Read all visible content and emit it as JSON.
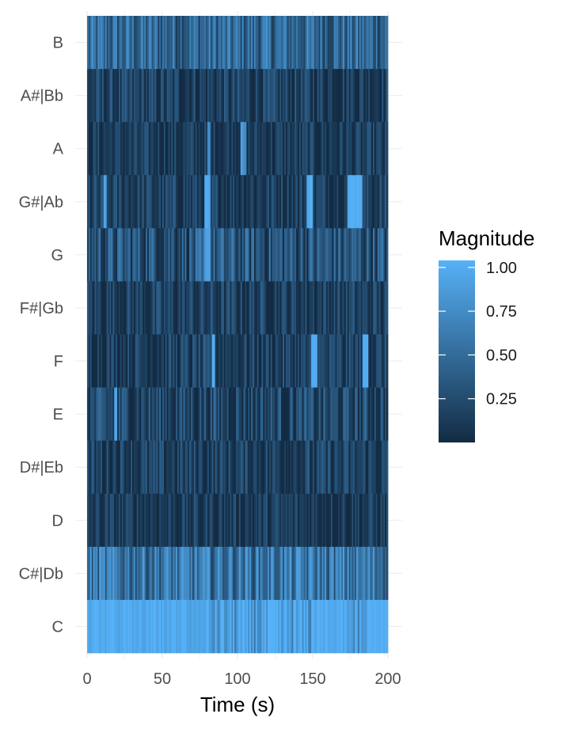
{
  "chart_data": {
    "type": "heatmap",
    "title": "",
    "xlabel": "Time (s)",
    "ylabel": "",
    "xlim": [
      0,
      200
    ],
    "x_ticks": [
      0,
      50,
      100,
      150,
      200
    ],
    "y_categories": [
      "C",
      "C#|Db",
      "D",
      "D#|Eb",
      "E",
      "F",
      "F#|Gb",
      "G",
      "G#|Ab",
      "A",
      "A#|Bb",
      "B"
    ],
    "legend": {
      "title": "Magnitude",
      "placement": "right",
      "ticks": [
        0.25,
        0.5,
        0.75,
        1.0
      ],
      "tick_labels": [
        "0.25",
        "0.50",
        "0.75",
        "1.00"
      ],
      "range": [
        0,
        1
      ]
    },
    "color_low": "#132B43",
    "color_high": "#56B1F7",
    "grid": true,
    "rows": [
      {
        "pitch": "B",
        "base": 0.45,
        "spread": 0.35,
        "peaks": []
      },
      {
        "pitch": "A#|Bb",
        "base": 0.15,
        "spread": 0.25,
        "peaks": []
      },
      {
        "pitch": "A",
        "base": 0.12,
        "spread": 0.22,
        "peaks": [
          [
            80,
            81.5,
            0.8
          ],
          [
            102,
            104,
            0.9
          ],
          [
            104,
            106,
            0.8
          ]
        ]
      },
      {
        "pitch": "G#|Ab",
        "base": 0.15,
        "spread": 0.25,
        "peaks": [
          [
            11,
            13,
            0.95
          ],
          [
            78,
            82,
            1.0
          ],
          [
            146,
            150,
            1.0
          ],
          [
            173,
            183,
            1.0
          ]
        ]
      },
      {
        "pitch": "G",
        "base": 0.3,
        "spread": 0.35,
        "peaks": [
          [
            78,
            82,
            0.9
          ]
        ]
      },
      {
        "pitch": "F#|Gb",
        "base": 0.15,
        "spread": 0.25,
        "peaks": []
      },
      {
        "pitch": "F",
        "base": 0.15,
        "spread": 0.25,
        "peaks": [
          [
            83,
            85,
            1.0
          ],
          [
            149,
            153,
            1.0
          ],
          [
            183,
            187,
            1.0
          ]
        ]
      },
      {
        "pitch": "E",
        "base": 0.2,
        "spread": 0.3,
        "peaks": [
          [
            18,
            20,
            0.95
          ]
        ]
      },
      {
        "pitch": "D#|Eb",
        "base": 0.15,
        "spread": 0.25,
        "peaks": []
      },
      {
        "pitch": "D",
        "base": 0.12,
        "spread": 0.22,
        "peaks": []
      },
      {
        "pitch": "C#|Db",
        "base": 0.55,
        "spread": 0.35,
        "peaks": []
      },
      {
        "pitch": "C",
        "base": 0.85,
        "spread": 0.3,
        "peaks": [
          [
            0,
            78,
            0.95
          ],
          [
            150,
            172,
            0.95
          ],
          [
            186,
            200,
            1.0
          ]
        ]
      }
    ],
    "bins": 200
  }
}
